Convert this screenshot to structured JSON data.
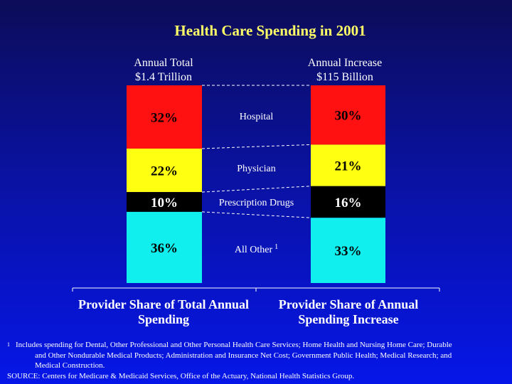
{
  "slide": {
    "title": "Health Care Spending in 2001",
    "left_header": {
      "line1": "Annual Total",
      "line2": "$1.4 Trillion"
    },
    "right_header": {
      "line1": "Annual Increase",
      "line2": "$115 Billion"
    },
    "bottom_left": {
      "line1": "Provider Share of Total Annual",
      "line2": "Spending"
    },
    "bottom_right": {
      "line1": "Provider Share of Annual",
      "line2": "Spending Increase"
    },
    "footnote": {
      "marker": "1",
      "line1": "Includes spending for Dental, Other Professional  and Other Personal Health Care Services; Home Health and Nursing Home Care; Durable",
      "line2": "and Other Nondurable Medical Products; Administration and Insurance Net Cost; Government Public Health; Medical Research; and",
      "line3": "Medical Construction.",
      "source": "SOURCE: Centers for Medicare & Medicaid Services, Office of the Actuary, National Health Statistics Group."
    }
  },
  "chart_data": {
    "type": "bar",
    "stacked": true,
    "unit": "%",
    "categories": [
      "Provider Share of Total Annual Spending",
      "Provider Share of Annual Spending Increase"
    ],
    "series": [
      {
        "name": "Hospital",
        "values": [
          32,
          30
        ],
        "color": "#ff1111",
        "text_color": "#000000",
        "label_suffix": ""
      },
      {
        "name": "Physician",
        "values": [
          22,
          21
        ],
        "color": "#ffff11",
        "text_color": "#000000",
        "label_suffix": ""
      },
      {
        "name": "Prescription Drugs",
        "values": [
          10,
          16
        ],
        "color": "#000000",
        "text_color": "#ffffff",
        "label_suffix": ""
      },
      {
        "name": "All Other",
        "values": [
          36,
          33
        ],
        "color": "#11eeee",
        "text_color": "#000000",
        "label_suffix": "1"
      }
    ],
    "legend_position": "between-bars",
    "grid": false
  }
}
